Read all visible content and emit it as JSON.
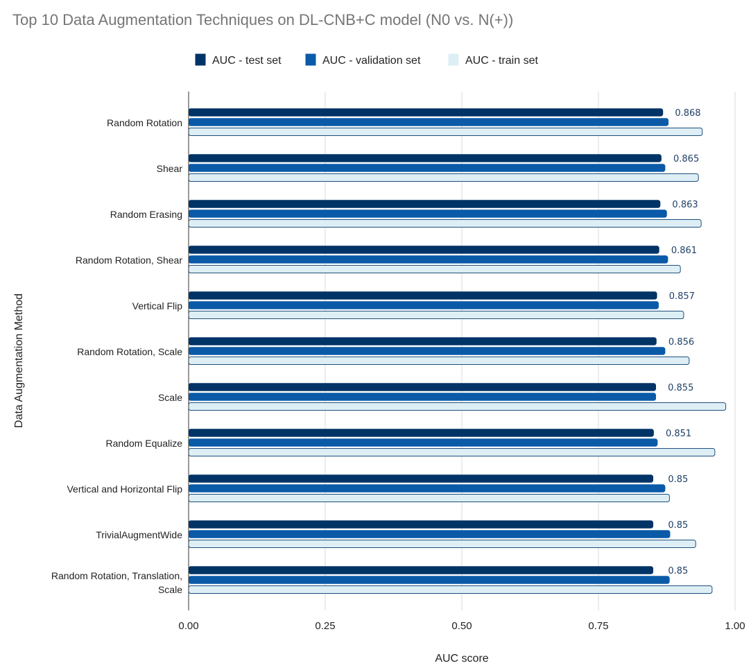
{
  "chart_data": {
    "type": "bar",
    "orientation": "horizontal",
    "title": "Top 10 Data Augmentation Techniques on DL-CNB+C model (N0 vs. N(+))",
    "xlabel": "AUC score",
    "ylabel": "Data Augmentation Method",
    "xlim": [
      0,
      1
    ],
    "x_ticks": [
      "0.00",
      "0.25",
      "0.50",
      "0.75",
      "1.00"
    ],
    "grid": true,
    "legend_position": "top-center",
    "categories": [
      [
        "Random Rotation"
      ],
      [
        "Shear"
      ],
      [
        "Random Erasing"
      ],
      [
        "Random Rotation, Shear"
      ],
      [
        "Vertical Flip"
      ],
      [
        "Random Rotation, Scale"
      ],
      [
        "Scale"
      ],
      [
        "Random Equalize"
      ],
      [
        "Vertical and Horizontal Flip"
      ],
      [
        "TrivialAugmentWide"
      ],
      [
        "Random Rotation, Translation,",
        "Scale"
      ]
    ],
    "series": [
      {
        "name": "AUC - test set",
        "color": "#003366",
        "values": [
          0.868,
          0.865,
          0.863,
          0.861,
          0.857,
          0.856,
          0.855,
          0.851,
          0.85,
          0.85,
          0.85
        ]
      },
      {
        "name": "AUC - validation set",
        "color": "#0a5aa8",
        "values": [
          0.878,
          0.872,
          0.875,
          0.877,
          0.86,
          0.872,
          0.855,
          0.858,
          0.872,
          0.881,
          0.88
        ]
      },
      {
        "name": "AUC - train set",
        "color": "#ddeef5",
        "values": [
          0.94,
          0.933,
          0.938,
          0.9,
          0.906,
          0.916,
          0.983,
          0.963,
          0.88,
          0.928,
          0.958
        ]
      }
    ],
    "data_labels": [
      "0.868",
      "0.865",
      "0.863",
      "0.861",
      "0.857",
      "0.856",
      "0.855",
      "0.851",
      "0.85",
      "0.85",
      "0.85"
    ],
    "data_label_color": "#1f3f66"
  }
}
